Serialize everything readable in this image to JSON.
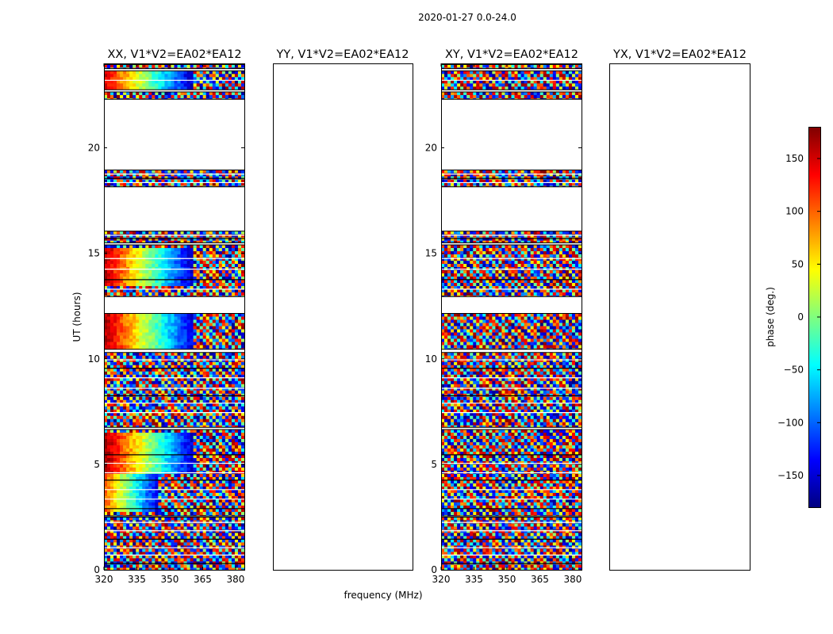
{
  "figure": {
    "suptitle": "2020-01-27 0.0-24.0",
    "xlabel": "frequency (MHz)",
    "ylabel": "UT (hours)"
  },
  "colorbar": {
    "label": "phase (deg.)",
    "range": [
      -180,
      180
    ],
    "ticks": [
      150,
      100,
      50,
      0,
      -50,
      -100,
      -150
    ],
    "tick_labels": [
      "150",
      "100",
      "50",
      "0",
      "−50",
      "−100",
      "−150"
    ],
    "colormap": "jet",
    "colors": [
      "#00007f",
      "#0000ff",
      "#007fff",
      "#00ffff",
      "#7fff7f",
      "#ffff00",
      "#ff7f00",
      "#ff0000",
      "#7f0000"
    ]
  },
  "chart_data": [
    {
      "type": "heatmap",
      "title": "XX, V1*V2=EA02*EA12",
      "xlabel": "",
      "ylabel": "UT (hours)",
      "xlim": [
        320,
        384
      ],
      "ylim": [
        0,
        24
      ],
      "xticks": [
        320,
        335,
        350,
        365,
        380
      ],
      "xtick_labels": [
        "320",
        "335",
        "350",
        "365",
        "380"
      ],
      "yticks": [
        0,
        5,
        10,
        15,
        20
      ],
      "ytick_labels": [
        "0",
        "5",
        "10",
        "15",
        "20"
      ],
      "value_units": "deg",
      "coherent_blocks": [
        {
          "t": [
            13.4,
            15.2
          ],
          "f": [
            320,
            361
          ],
          "phase_from": 165,
          "phase_to": -160
        },
        {
          "t": [
            10.3,
            12.1
          ],
          "f": [
            320,
            361
          ],
          "phase_from": 170,
          "phase_to": -150
        },
        {
          "t": [
            4.5,
            6.5
          ],
          "f": [
            320,
            361
          ],
          "phase_from": 175,
          "phase_to": -155
        },
        {
          "t": [
            2.7,
            4.5
          ],
          "f": [
            320,
            345
          ],
          "phase_from": 110,
          "phase_to": -150
        },
        {
          "t": [
            22.8,
            23.6
          ],
          "f": [
            320,
            361
          ],
          "phase_from": 150,
          "phase_to": -160
        }
      ]
    },
    {
      "type": "heatmap",
      "title": "YY, V1*V2=EA02*EA12",
      "xlabel": "frequency (MHz)",
      "ylabel": "",
      "xlim": [
        320,
        384
      ],
      "ylim": [
        0,
        24
      ],
      "xticks": [
        320,
        335,
        350,
        365,
        380
      ],
      "xtick_labels": [
        "320",
        "335",
        "350",
        "365",
        "380"
      ],
      "yticks": [
        0,
        5,
        10,
        15,
        20
      ],
      "ytick_labels": [
        "0",
        "5",
        "10",
        "15",
        "20"
      ],
      "value_units": "deg",
      "coherent_blocks": [
        {
          "t": [
            13.4,
            15.2
          ],
          "f": [
            320,
            361
          ],
          "phase_from": 80,
          "phase_to": 120
        },
        {
          "t": [
            10.3,
            12.1
          ],
          "f": [
            320,
            361
          ],
          "phase_from": 130,
          "phase_to": 95
        },
        {
          "t": [
            4.5,
            6.5
          ],
          "f": [
            320,
            361
          ],
          "phase_from": 150,
          "phase_to": 115
        },
        {
          "t": [
            2.7,
            4.5
          ],
          "f": [
            320,
            345
          ],
          "phase_from": 120,
          "phase_to": 60
        },
        {
          "t": [
            22.8,
            23.6
          ],
          "f": [
            320,
            361
          ],
          "phase_from": 130,
          "phase_to": 100
        }
      ]
    },
    {
      "type": "heatmap",
      "title": "XY, V1*V2=EA02*EA12",
      "xlabel": "",
      "ylabel": "",
      "xlim": [
        320,
        384
      ],
      "ylim": [
        0,
        24
      ],
      "xticks": [
        320,
        335,
        350,
        365,
        380
      ],
      "xtick_labels": [
        "320",
        "335",
        "350",
        "365",
        "380"
      ],
      "yticks": [
        0,
        5,
        10,
        15,
        20
      ],
      "ytick_labels": [
        "0",
        "5",
        "10",
        "15",
        "20"
      ],
      "value_units": "deg",
      "coherent_blocks": []
    },
    {
      "type": "heatmap",
      "title": "YX, V1*V2=EA02*EA12",
      "xlabel": "",
      "ylabel": "",
      "xlim": [
        320,
        384
      ],
      "ylim": [
        0,
        24
      ],
      "xticks": [
        320,
        335,
        350,
        365,
        380
      ],
      "xtick_labels": [
        "320",
        "335",
        "350",
        "365",
        "380"
      ],
      "yticks": [
        0,
        5,
        10,
        15,
        20
      ],
      "ytick_labels": [
        "0",
        "5",
        "10",
        "15",
        "20"
      ],
      "value_units": "deg",
      "coherent_blocks": []
    }
  ],
  "common_time_coverage": {
    "description_units": "UT hours",
    "data_intervals": [
      [
        0.0,
        2.5
      ],
      [
        2.55,
        6.65
      ],
      [
        6.75,
        10.3
      ],
      [
        10.45,
        12.15
      ],
      [
        12.95,
        15.4
      ],
      [
        15.5,
        16.05
      ],
      [
        18.15,
        18.95
      ],
      [
        22.3,
        22.65
      ],
      [
        22.75,
        23.65
      ],
      [
        23.75,
        23.95
      ]
    ],
    "flag_lines": [
      0.3,
      0.7,
      1.05,
      1.45,
      1.85,
      2.25,
      2.9,
      3.35,
      3.8,
      4.25,
      4.6,
      5.05,
      5.45,
      7.45,
      7.9,
      8.25,
      8.6,
      9.1,
      9.55,
      9.95,
      13.3,
      13.75,
      14.25,
      14.75,
      15.7,
      15.85,
      18.35,
      18.55,
      18.75,
      23.2
    ]
  }
}
